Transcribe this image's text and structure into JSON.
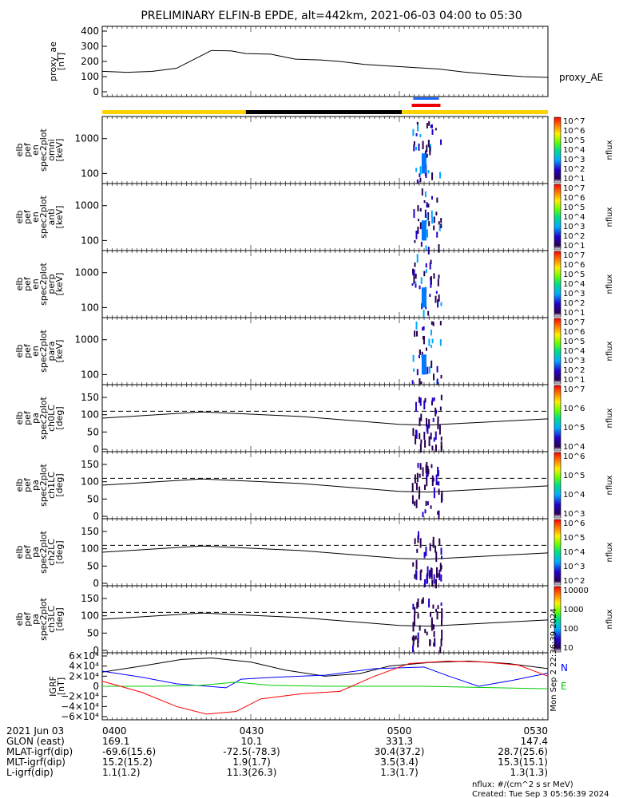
{
  "title": "PRELIMINARY ELFIN-B EPDE, alt=442km, 2021-06-03 04:00 to 05:30",
  "chart_data": [
    {
      "type": "line",
      "ylabel": [
        "proxy_ae",
        "[nT]"
      ],
      "legend": "proxy_AE",
      "ylim": [
        0,
        400
      ],
      "yticks": [
        "400",
        "300",
        "200",
        "100",
        "0"
      ],
      "x_minutes": [
        0,
        5,
        10,
        15,
        18,
        22,
        26,
        29,
        34,
        39,
        44,
        48,
        53,
        58,
        63,
        68,
        73,
        79,
        85,
        90
      ],
      "y": [
        135,
        128,
        134,
        155,
        205,
        272,
        270,
        252,
        248,
        215,
        210,
        200,
        180,
        170,
        160,
        150,
        130,
        113,
        100,
        95
      ]
    },
    {
      "type": "heatmap",
      "ylabel": [
        "elb",
        "pef",
        "en",
        "spec2plot",
        "omni",
        "[keV]"
      ],
      "yticks": [
        "1000",
        "100"
      ],
      "cbar_label": "nflux",
      "cbar_ticks": [
        "10^7",
        "10^6",
        "10^5",
        "10^4",
        "10^3",
        "10^2",
        "10^1"
      ]
    },
    {
      "type": "heatmap",
      "ylabel": [
        "elb",
        "pef",
        "en",
        "spec2plot",
        "anti",
        "[keV]"
      ],
      "yticks": [
        "1000",
        "100"
      ],
      "cbar_label": "nflux",
      "cbar_ticks": [
        "10^7",
        "10^6",
        "10^5",
        "10^4",
        "10^3",
        "10^2",
        "10^1"
      ]
    },
    {
      "type": "heatmap",
      "ylabel": [
        "elb",
        "pef",
        "en",
        "spec2plot",
        "perp",
        "[keV]"
      ],
      "yticks": [
        "1000",
        "100"
      ],
      "cbar_label": "nflux",
      "cbar_ticks": [
        "10^7",
        "10^6",
        "10^5",
        "10^4",
        "10^3",
        "10^2",
        "10^1"
      ]
    },
    {
      "type": "heatmap",
      "ylabel": [
        "elb",
        "pef",
        "en",
        "spec2plot",
        "para",
        "[keV]"
      ],
      "yticks": [
        "1000",
        "100"
      ],
      "cbar_label": "nflux",
      "cbar_ticks": [
        "10^7",
        "10^6",
        "10^5",
        "10^4",
        "10^3",
        "10^2",
        "10^1"
      ]
    },
    {
      "type": "heatmap",
      "ylabel": [
        "elb",
        "pef",
        "pa",
        "spec2plot",
        "ch0LC",
        "[deg]"
      ],
      "yticks": [
        "150",
        "100",
        "50",
        "0"
      ],
      "ylim": [
        0,
        180
      ],
      "cbar_label": "nflux",
      "cbar_ticks": [
        "10^7",
        "10^6",
        "10^5",
        "10^4"
      ]
    },
    {
      "type": "heatmap",
      "ylabel": [
        "elb",
        "pef",
        "pa",
        "spec2plot",
        "ch1LC",
        "[deg]"
      ],
      "yticks": [
        "150",
        "100",
        "50",
        "0"
      ],
      "ylim": [
        0,
        180
      ],
      "cbar_label": "nflux",
      "cbar_ticks": [
        "10^6",
        "10^5",
        "10^4",
        "10^3"
      ]
    },
    {
      "type": "heatmap",
      "ylabel": [
        "elb",
        "pef",
        "pa",
        "spec2plot",
        "ch2LC",
        "[deg]"
      ],
      "yticks": [
        "150",
        "100",
        "50",
        "0"
      ],
      "ylim": [
        0,
        180
      ],
      "cbar_label": "nflux",
      "cbar_ticks": [
        "10^6",
        "10^5",
        "10^4",
        "10^3",
        "10^2"
      ]
    },
    {
      "type": "heatmap",
      "ylabel": [
        "elb",
        "pef",
        "pa",
        "spec2plot",
        "ch3LC",
        "[deg]"
      ],
      "yticks": [
        "150",
        "100",
        "50",
        "0"
      ],
      "ylim": [
        0,
        180
      ],
      "cbar_label": "nflux",
      "cbar_ticks": [
        "10000",
        "1000",
        "100",
        "10"
      ]
    },
    {
      "type": "line",
      "ylabel": [
        "IGRF",
        "[nT]"
      ],
      "yticks": [
        "6×10⁴",
        "4×10⁴",
        "2×10⁴",
        "0",
        "−2×10⁴",
        "−4×10⁴",
        "−6×10⁴"
      ],
      "ylim": [
        -60000,
        60000
      ],
      "legend": [
        "N",
        "E"
      ],
      "series": [
        {
          "color": "#000000",
          "x_minutes": [
            0,
            8,
            16,
            22,
            30,
            37,
            45,
            52,
            58,
            66,
            74,
            82,
            90
          ],
          "values": [
            28000,
            40000,
            53000,
            56000,
            48000,
            32000,
            20000,
            25000,
            40000,
            47000,
            50000,
            45000,
            35000
          ]
        },
        {
          "color": "#0000ff",
          "x_minutes": [
            0,
            8,
            15,
            25,
            28,
            35,
            45,
            55,
            65,
            70,
            76,
            83,
            90
          ],
          "values": [
            30000,
            18000,
            5000,
            -3000,
            14000,
            18000,
            22000,
            35000,
            38000,
            20000,
            0,
            12000,
            26000
          ]
        },
        {
          "color": "#00cc00",
          "x_minutes": [
            0,
            10,
            20,
            27,
            34,
            45,
            55,
            65,
            75,
            90
          ],
          "values": [
            0,
            0,
            2000,
            8000,
            2000,
            0,
            0,
            0,
            -2000,
            -5000
          ]
        },
        {
          "color": "#ff0000",
          "x_minutes": [
            0,
            8,
            15,
            21,
            27,
            32,
            40,
            48,
            55,
            62,
            70,
            77,
            84,
            90
          ],
          "values": [
            10000,
            -12000,
            -40000,
            -55000,
            -50000,
            -25000,
            -15000,
            -10000,
            20000,
            45000,
            50000,
            48000,
            42000,
            20000
          ]
        }
      ]
    }
  ],
  "flags": [
    {
      "label": "",
      "color": "#ffd200",
      "from_min": 0,
      "to_min": 29
    },
    {
      "label": "",
      "color": "#000000",
      "from_min": 29,
      "to_min": 60.5
    },
    {
      "label": "",
      "color": "#ffd200",
      "from_min": 60.5,
      "to_min": 90
    }
  ],
  "footer": {
    "rows": [
      {
        "label": "2021 Jun 03",
        "values": [
          "0400",
          "0430",
          "0500",
          "0530"
        ]
      },
      {
        "label": "GLON (east)",
        "values": [
          "169.1",
          "10.1",
          "331.3",
          "147.4"
        ]
      },
      {
        "label": "MLAT-igrf(dip)",
        "values": [
          "-69.6(15.6)",
          "-72.5(-78.3)",
          "30.4(37.2)",
          "28.7(25.6)"
        ]
      },
      {
        "label": "MLT-igrf(dip)",
        "values": [
          "15.2(15.2)",
          "1.9(1.7)",
          "3.5(3.4)",
          "15.3(15.1)"
        ]
      },
      {
        "label": "L-igrf(dip)",
        "values": [
          "1.1(1.2)",
          "11.3(26.3)",
          "1.3(1.7)",
          "1.3(1.3)"
        ]
      }
    ],
    "units_note": "nflux: #/(cm^2 s sr MeV)",
    "created": "Created: Tue Sep  3 05:56:39 2024",
    "side_stamp": "Mon Sep  2 22:36:39 2024"
  }
}
